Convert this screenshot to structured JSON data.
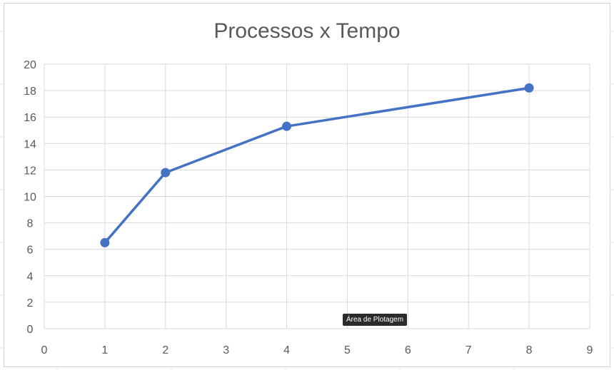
{
  "chart_data": {
    "type": "line",
    "title": "Processos x Tempo",
    "x": [
      1,
      2,
      4,
      8
    ],
    "series": [
      {
        "values": [
          6.5,
          11.8,
          15.3,
          18.2
        ]
      }
    ],
    "xlim": [
      0,
      9
    ],
    "ylim": [
      0,
      20
    ],
    "x_ticks": [
      "0",
      "1",
      "2",
      "3",
      "4",
      "5",
      "6",
      "7",
      "8",
      "9"
    ],
    "y_ticks": [
      "0",
      "2",
      "4",
      "6",
      "8",
      "10",
      "12",
      "14",
      "16",
      "18",
      "20"
    ],
    "grid": true,
    "line_color": "#4472c4"
  },
  "tooltip": {
    "text": "Área de Plotagem"
  }
}
